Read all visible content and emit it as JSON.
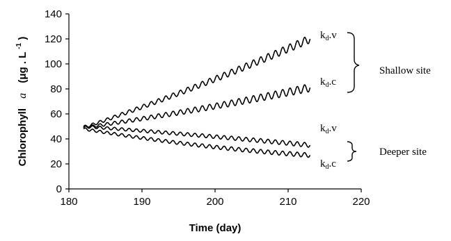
{
  "chart_data": {
    "type": "line",
    "xlabel": "Time (day)",
    "ylabel": {
      "prefix": "Chlorophyll",
      "symbol": "a",
      "unit_open": "(μg . L",
      "unit_sup": "-1",
      "unit_close": ")"
    },
    "xlim": [
      180,
      220
    ],
    "ylim": [
      0,
      140
    ],
    "x_ticks": [
      "180",
      "190",
      "200",
      "210",
      "220"
    ],
    "y_ticks": [
      "0",
      "20",
      "40",
      "60",
      "80",
      "100",
      "120",
      "140"
    ],
    "grid": false,
    "series": [
      {
        "name": "kd.v",
        "site": "Shallow site",
        "x_start": 182,
        "x_end": 213,
        "y_start": 49,
        "y_end": 120
      },
      {
        "name": "kd.c",
        "site": "Shallow site",
        "x_start": 182,
        "x_end": 213,
        "y_start": 49,
        "y_end": 81
      },
      {
        "name": "kd.v",
        "site": "Deeper site",
        "x_start": 182,
        "x_end": 213,
        "y_start": 50,
        "y_end": 35
      },
      {
        "name": "kd.c",
        "site": "Deeper site",
        "x_start": 182,
        "x_end": 213,
        "y_start": 48,
        "y_end": 27
      }
    ],
    "series_labels": [
      {
        "base": "k",
        "sub": "d",
        "suffix": ".v"
      },
      {
        "base": "k",
        "sub": "d",
        "suffix": ".c"
      },
      {
        "base": "k",
        "sub": "d",
        "suffix": ".v"
      },
      {
        "base": "k",
        "sub": "d",
        "suffix": ".c"
      }
    ],
    "group_labels": [
      "Shallow site",
      "Deeper site"
    ],
    "line_color": "#000000"
  }
}
